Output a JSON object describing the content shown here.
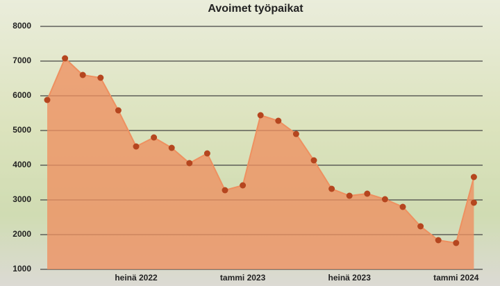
{
  "chart_data": {
    "type": "area",
    "title": "Avoimet työpaikat",
    "categories": [
      null,
      null,
      null,
      null,
      null,
      "heinä 2022",
      null,
      null,
      null,
      null,
      null,
      "tammi 2023",
      null,
      null,
      null,
      null,
      null,
      "heinä 2023",
      null,
      null,
      null,
      null,
      null,
      "tammi 2024",
      null
    ],
    "series": [
      {
        "color": "#ee9060",
        "values": [
          5880,
          7080,
          6600,
          6520,
          5580,
          4540,
          4800,
          4500,
          4060,
          4340,
          3280,
          3420,
          5440,
          5280,
          4900,
          4140,
          3320,
          3120,
          3180,
          3020,
          2800,
          2240,
          1840,
          1760,
          3660
        ]
      },
      {
        "color": "#b5461f",
        "values": [
          null,
          null,
          null,
          null,
          null,
          null,
          null,
          null,
          null,
          null,
          null,
          null,
          null,
          null,
          null,
          null,
          null,
          null,
          null,
          null,
          null,
          null,
          null,
          null,
          2920
        ]
      }
    ],
    "marker_color": "#b5461f",
    "ylim": [
      1000,
      8000
    ],
    "yticks": [
      1000,
      2000,
      3000,
      4000,
      5000,
      6000,
      7000,
      8000
    ],
    "grid": true
  }
}
